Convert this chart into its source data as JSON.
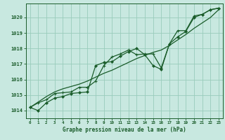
{
  "title": "Graphe pression niveau de la mer (hPa)",
  "hours": [
    0,
    1,
    2,
    3,
    4,
    5,
    6,
    7,
    8,
    9,
    10,
    11,
    12,
    13,
    14,
    15,
    16,
    17,
    18,
    19,
    20,
    21,
    22,
    23
  ],
  "line_main": [
    1014.2,
    1014.0,
    1014.5,
    1014.8,
    1014.9,
    1015.1,
    1015.15,
    1015.2,
    1016.9,
    1017.1,
    1017.15,
    1017.5,
    1017.8,
    1018.0,
    1017.6,
    1016.9,
    1016.65,
    1018.3,
    1018.75,
    1019.1,
    1020.0,
    1020.2,
    1020.5,
    1020.6
  ],
  "line_second": [
    1014.2,
    1014.5,
    1014.7,
    1015.1,
    1015.15,
    1015.2,
    1015.5,
    1015.5,
    1015.9,
    1016.9,
    1017.45,
    1017.65,
    1017.9,
    1017.6,
    1017.65,
    1017.65,
    1016.75,
    1018.3,
    1019.15,
    1019.15,
    1020.1,
    1020.2,
    1020.5,
    1020.6
  ],
  "line_smooth": [
    1014.2,
    1014.55,
    1014.9,
    1015.2,
    1015.4,
    1015.55,
    1015.7,
    1015.9,
    1016.15,
    1016.4,
    1016.6,
    1016.85,
    1017.1,
    1017.35,
    1017.55,
    1017.75,
    1017.9,
    1018.2,
    1018.55,
    1018.9,
    1019.3,
    1019.65,
    1020.0,
    1020.5
  ],
  "bg_color": "#c8e8e0",
  "plot_bg": "#c8e8e0",
  "grid_color": "#99ccbb",
  "line_color": "#1a5c2a",
  "label_bg": "#336644",
  "ylabel_vals": [
    1014,
    1015,
    1016,
    1017,
    1018,
    1019,
    1020
  ],
  "ylim": [
    1013.5,
    1020.9
  ],
  "xlim": [
    -0.5,
    23.5
  ]
}
